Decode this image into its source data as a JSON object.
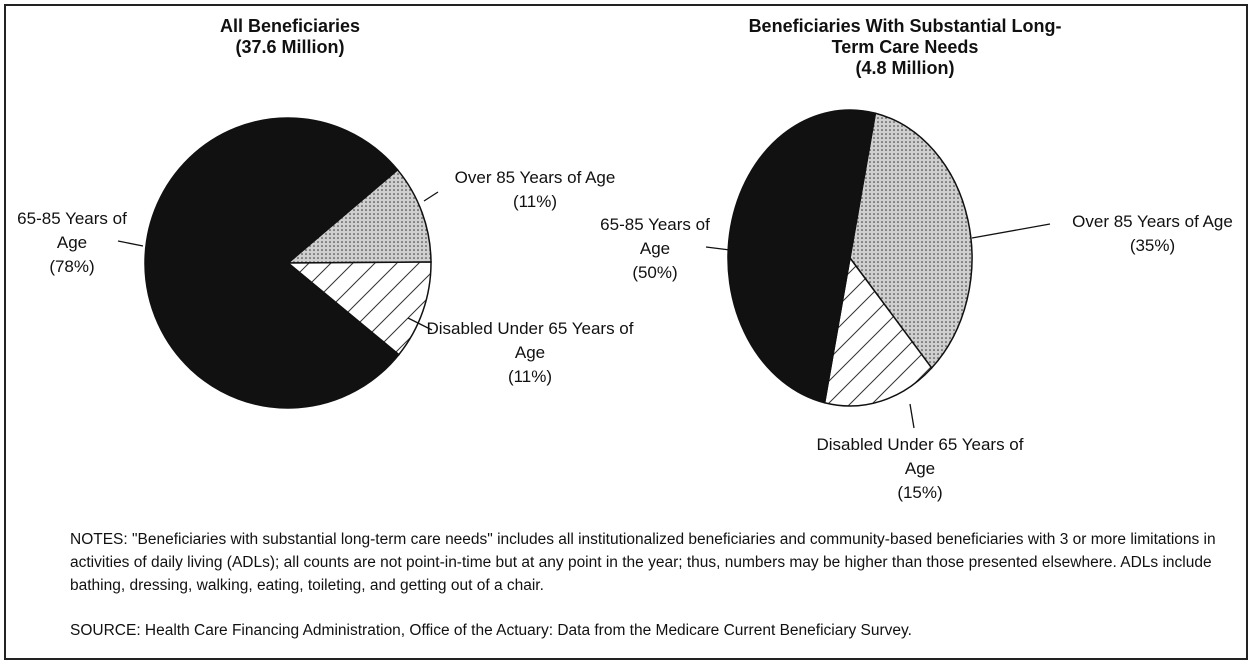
{
  "chart_data": [
    {
      "type": "pie",
      "title": "All Beneficiaries",
      "subtitle": "(37.6 Million)",
      "categories": [
        "65-85 Years of Age",
        "Over 85 Years of Age",
        "Disabled Under 65 Years of Age"
      ],
      "values": [
        78,
        11,
        11
      ],
      "value_labels": [
        "(78%)",
        "(11%)",
        "(11%)"
      ],
      "colors": [
        "#111111",
        "#cfcfcf",
        "#ffffff"
      ],
      "patterns": [
        "solid",
        "dots",
        "hatch"
      ]
    },
    {
      "type": "pie",
      "title": "Beneficiaries With Substantial Long-Term Care Needs",
      "subtitle": "(4.8 Million)",
      "categories": [
        "65-85 Years of Age",
        "Over 85 Years of Age",
        "Disabled Under 65 Years of Age"
      ],
      "values": [
        50,
        35,
        15
      ],
      "value_labels": [
        "(50%)",
        "(35%)",
        "(15%)"
      ],
      "colors": [
        "#111111",
        "#cfcfcf",
        "#ffffff"
      ],
      "patterns": [
        "solid",
        "dots",
        "hatch"
      ]
    }
  ],
  "notes": "NOTES:  \"Beneficiaries with substantial long-term care needs\" includes all institutionalized beneficiaries and community-based beneficiaries with 3 or more limitations in activities of daily living (ADLs); all counts are not point-in-time but at any point in the year; thus, numbers may be higher than those presented elsewhere.  ADLs include bathing, dressing, walking, eating, toileting, and getting out of a chair.",
  "source": "SOURCE:  Health Care Financing Administration, Office of the Actuary:  Data from the Medicare Current Beneficiary Survey."
}
